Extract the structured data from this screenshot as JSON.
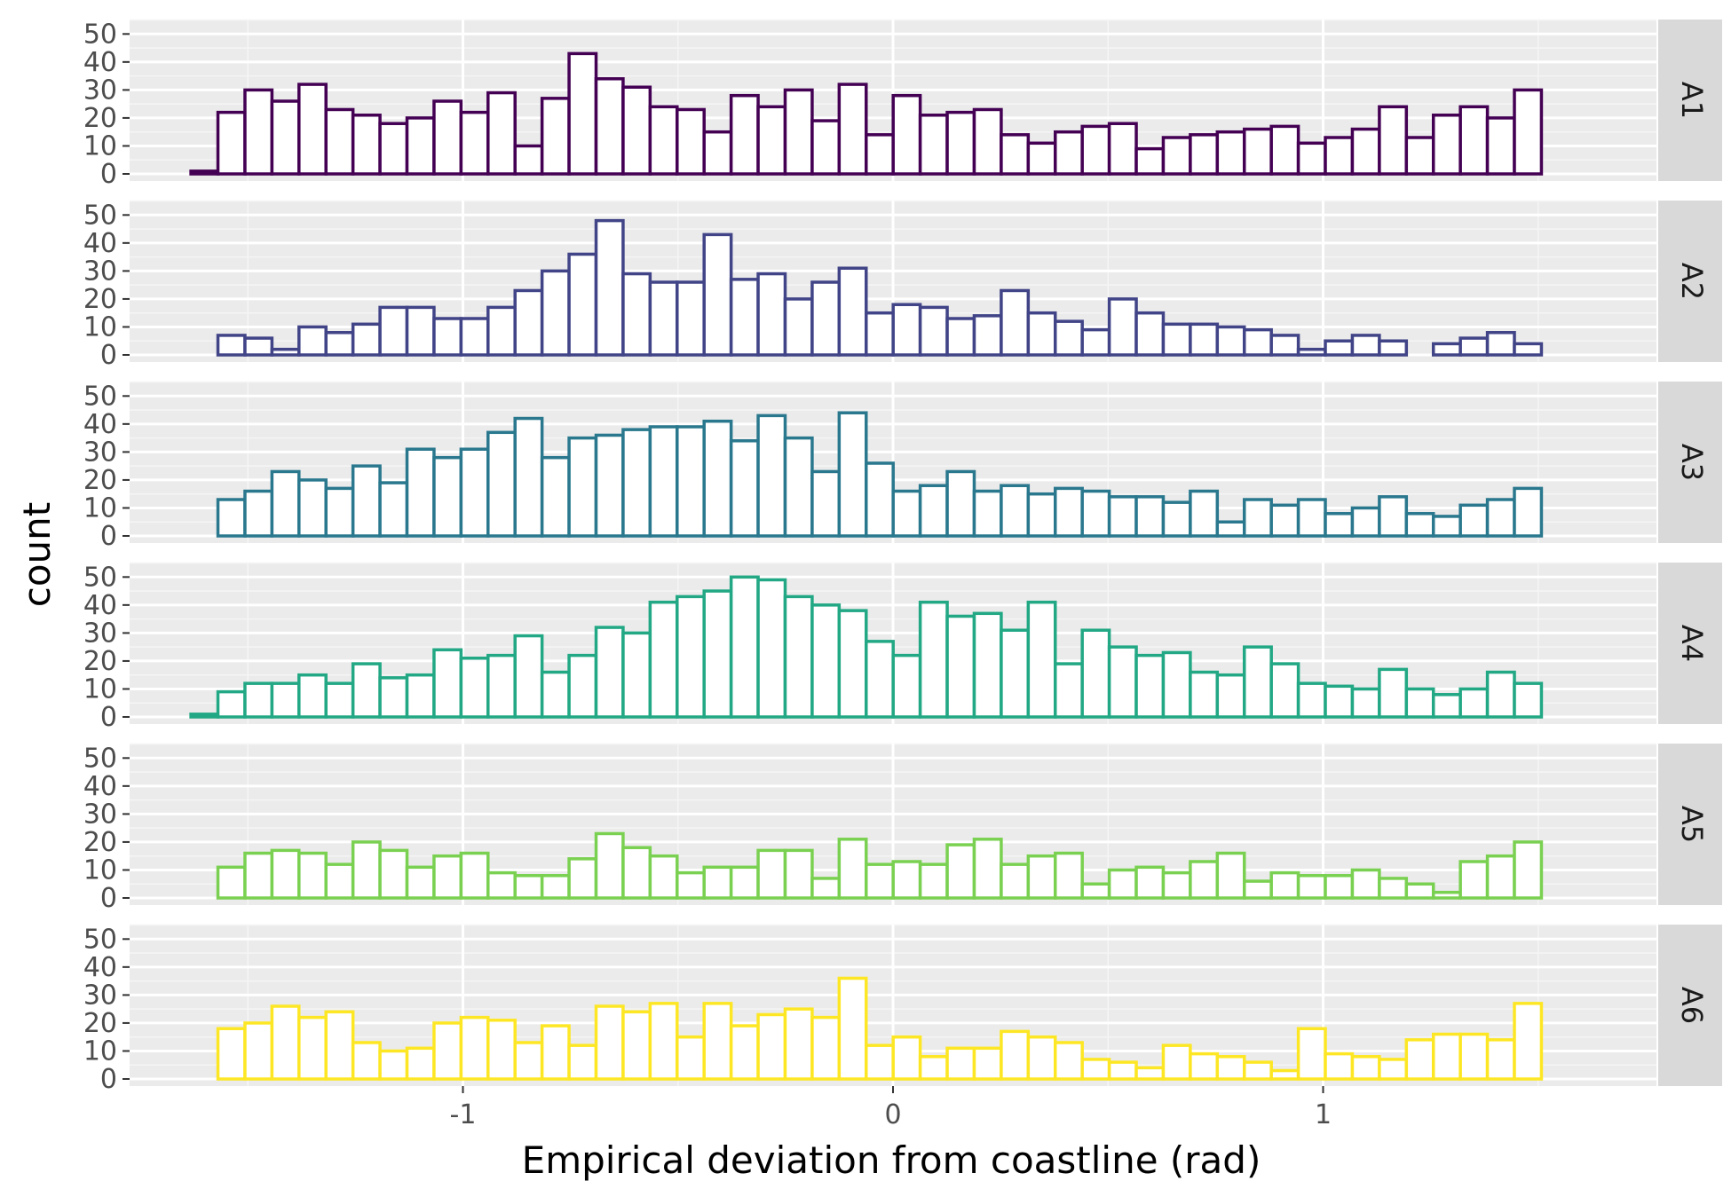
{
  "chart_data": {
    "type": "bar",
    "subtype": "faceted-histogram",
    "xlabel": "Empirical deviation from coastline (rad)",
    "ylabel": "count",
    "xlim": [
      -1.775,
      1.775
    ],
    "ylim": [
      0,
      52
    ],
    "x_ticks": [
      -1,
      0,
      1
    ],
    "x_tick_labels": [
      "-1",
      "0",
      "1"
    ],
    "y_ticks": [
      0,
      10,
      20,
      30,
      40,
      50
    ],
    "y_tick_labels": [
      "0",
      "10",
      "20",
      "30",
      "40",
      "50"
    ],
    "grid": true,
    "panel_background": "#ebebeb",
    "strip_background": "#d9d9d9",
    "bin_start": -1.6324,
    "bin_width": 0.0628,
    "series": [
      {
        "name": "A1",
        "color": "#440154",
        "values": [
          1,
          22,
          30,
          26,
          32,
          23,
          21,
          18,
          20,
          26,
          22,
          29,
          10,
          27,
          43,
          34,
          31,
          24,
          23,
          15,
          28,
          24,
          30,
          19,
          32,
          14,
          28,
          21,
          22,
          23,
          14,
          11,
          15,
          17,
          18,
          9,
          13,
          14,
          15,
          16,
          17,
          11,
          13,
          16,
          24,
          13,
          21,
          24,
          20,
          30
        ]
      },
      {
        "name": "A2",
        "color": "#414487",
        "values": [
          0,
          7,
          6,
          2,
          10,
          8,
          11,
          17,
          17,
          13,
          13,
          17,
          23,
          30,
          36,
          48,
          29,
          26,
          26,
          43,
          27,
          29,
          20,
          26,
          31,
          15,
          18,
          17,
          13,
          14,
          23,
          15,
          12,
          9,
          20,
          15,
          11,
          11,
          10,
          9,
          7,
          2,
          5,
          7,
          5,
          0,
          4,
          6,
          8,
          4
        ]
      },
      {
        "name": "A3",
        "color": "#2a788e",
        "values": [
          0,
          13,
          16,
          23,
          20,
          17,
          25,
          19,
          31,
          28,
          31,
          37,
          42,
          28,
          35,
          36,
          38,
          39,
          39,
          41,
          34,
          43,
          35,
          23,
          44,
          26,
          16,
          18,
          23,
          16,
          18,
          15,
          17,
          16,
          14,
          14,
          12,
          16,
          5,
          13,
          11,
          13,
          8,
          10,
          14,
          8,
          7,
          11,
          13,
          17
        ]
      },
      {
        "name": "A4",
        "color": "#22a884",
        "values": [
          1,
          9,
          12,
          12,
          15,
          12,
          19,
          14,
          15,
          24,
          21,
          22,
          29,
          16,
          22,
          32,
          30,
          41,
          43,
          45,
          50,
          49,
          43,
          40,
          38,
          27,
          22,
          41,
          36,
          37,
          31,
          41,
          19,
          31,
          25,
          22,
          23,
          16,
          15,
          25,
          19,
          12,
          11,
          10,
          17,
          10,
          8,
          10,
          16,
          12
        ]
      },
      {
        "name": "A5",
        "color": "#7ad151",
        "values": [
          0,
          11,
          16,
          17,
          16,
          12,
          20,
          17,
          11,
          15,
          16,
          9,
          8,
          8,
          14,
          23,
          18,
          15,
          9,
          11,
          11,
          17,
          17,
          7,
          21,
          12,
          13,
          12,
          19,
          21,
          12,
          15,
          16,
          5,
          10,
          11,
          9,
          13,
          16,
          6,
          9,
          8,
          8,
          10,
          7,
          5,
          2,
          13,
          15,
          20
        ]
      },
      {
        "name": "A6",
        "color": "#fde725",
        "values": [
          0,
          18,
          20,
          26,
          22,
          24,
          13,
          10,
          11,
          20,
          22,
          21,
          13,
          19,
          12,
          26,
          24,
          27,
          15,
          27,
          19,
          23,
          25,
          22,
          36,
          12,
          15,
          8,
          11,
          11,
          17,
          15,
          13,
          7,
          6,
          4,
          12,
          9,
          8,
          6,
          3,
          18,
          9,
          8,
          7,
          14,
          16,
          16,
          14,
          27
        ]
      }
    ]
  }
}
